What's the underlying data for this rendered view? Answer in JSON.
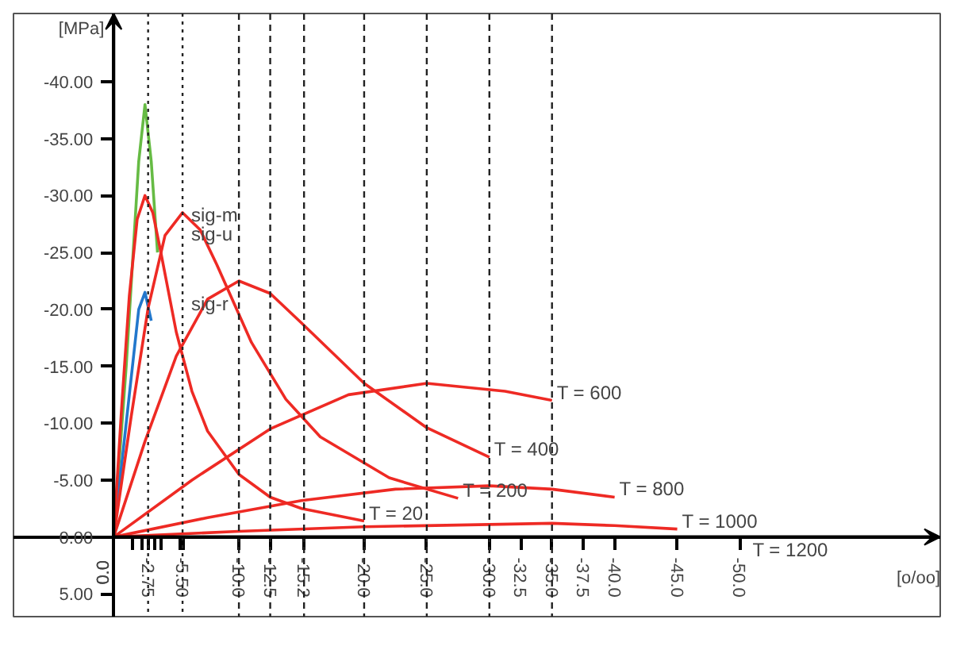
{
  "chart_data": {
    "type": "line",
    "xlabel": "[o/oo]",
    "ylabel": "[MPa]",
    "xlim": [
      8,
      -66
    ],
    "ylim": [
      7,
      -46
    ],
    "xticks": [
      {
        "value": 0,
        "label": "0.0"
      },
      {
        "value": -1.5,
        "label": null
      },
      {
        "value": -2.25,
        "label": null
      },
      {
        "value": -2.75,
        "label": "-2.75"
      },
      {
        "value": -3.25,
        "label": null
      },
      {
        "value": -3.75,
        "label": null
      },
      {
        "value": -5.25,
        "label": null
      },
      {
        "value": -5.5,
        "label": "-5.50"
      },
      {
        "value": -10,
        "label": "-10.0"
      },
      {
        "value": -12.5,
        "label": "-12.5"
      },
      {
        "value": -15.2,
        "label": "-15.2"
      },
      {
        "value": -20,
        "label": "-20.0"
      },
      {
        "value": -25,
        "label": "-25.0"
      },
      {
        "value": -30,
        "label": "-30.0"
      },
      {
        "value": -32.5,
        "label": "-32.5"
      },
      {
        "value": -35,
        "label": "-35.0"
      },
      {
        "value": -37.5,
        "label": "-37.5"
      },
      {
        "value": -40,
        "label": "-40.0"
      },
      {
        "value": -45,
        "label": "-45.0"
      },
      {
        "value": -50,
        "label": "-50.0"
      }
    ],
    "yticks": [
      {
        "value": -40,
        "label": "-40.00"
      },
      {
        "value": -35,
        "label": "-35.00"
      },
      {
        "value": -30,
        "label": "-30.00"
      },
      {
        "value": -25,
        "label": "-25.00"
      },
      {
        "value": -20,
        "label": "-20.00"
      },
      {
        "value": -15,
        "label": "-15.00"
      },
      {
        "value": -10,
        "label": "-10.00"
      },
      {
        "value": -5,
        "label": "-5.00"
      },
      {
        "value": 0,
        "label": "0.00"
      },
      {
        "value": 5,
        "label": "5.00"
      }
    ],
    "series": [
      {
        "color": "#66bb44",
        "x": [
          0,
          -1,
          -2,
          -2.5,
          -3,
          -3.5
        ],
        "values": [
          0,
          -15,
          -33,
          -38,
          -33,
          -25
        ]
      },
      {
        "color": "#2277cc",
        "x": [
          0,
          -1,
          -2,
          -2.5,
          -3
        ],
        "values": [
          0,
          -10,
          -20,
          -21.5,
          -19
        ]
      },
      {
        "name": "T = 20",
        "color": "#ee2a24",
        "x": [
          0,
          -0.625,
          -1.25,
          -1.875,
          -2.5,
          -3.125,
          -3.75,
          -5,
          -6.25,
          -7.5,
          -10,
          -12.5,
          -15,
          -20
        ],
        "values": [
          0,
          -11.2,
          -21.2,
          -27.9,
          -30,
          -28.5,
          -25.1,
          -18,
          -12.8,
          -9.3,
          -5.5,
          -3.5,
          -2.5,
          -1.4
        ]
      },
      {
        "name": "T = 200",
        "color": "#ee2a24",
        "x": [
          0,
          -1.4,
          -2.75,
          -4.1,
          -5.5,
          -6.9,
          -8.25,
          -11,
          -13.75,
          -16.5,
          -22,
          -27.5
        ],
        "values": [
          0,
          -10.6,
          -20.1,
          -26.5,
          -28.5,
          -27,
          -23.9,
          -17.1,
          -12.1,
          -8.8,
          -5.2,
          -3.4
        ]
      },
      {
        "name": "T = 400",
        "color": "#ee2a24",
        "x": [
          0,
          -2.5,
          -5,
          -7.5,
          -10,
          -12.5,
          -15,
          -20,
          -25,
          -30
        ],
        "values": [
          0,
          -8.4,
          -15.9,
          -20.9,
          -22.5,
          -21.4,
          -18.8,
          -13.5,
          -9.6,
          -7
        ]
      },
      {
        "name": "T = 600",
        "color": "#ee2a24",
        "x": [
          0,
          -6.25,
          -12.5,
          -18.75,
          -25,
          -31.25,
          -35
        ],
        "values": [
          0,
          -5,
          -9.5,
          -12.5,
          -13.5,
          -12.8,
          -12
        ]
      },
      {
        "name": "T = 800",
        "color": "#ee2a24",
        "x": [
          0,
          -7.5,
          -15,
          -22.5,
          -30,
          -35,
          -40
        ],
        "values": [
          0,
          -1.7,
          -3.2,
          -4.2,
          -4.5,
          -4.2,
          -3.5
        ]
      },
      {
        "name": "T = 1000",
        "color": "#ee2a24",
        "x": [
          0,
          -10,
          -20,
          -30,
          -35,
          -40,
          -45
        ],
        "values": [
          0,
          -0.5,
          -0.9,
          -1.1,
          -1.2,
          -1,
          -0.7
        ]
      }
    ],
    "ref_lines": [
      {
        "axis": "x",
        "value": -2.75,
        "line_style": "dotted"
      },
      {
        "axis": "x",
        "value": -5.5,
        "line_style": "dotted"
      },
      {
        "axis": "x",
        "value": -10,
        "line_style": "dashed"
      },
      {
        "axis": "x",
        "value": -12.5,
        "line_style": "dashed"
      },
      {
        "axis": "x",
        "value": -15.2,
        "line_style": "dashed"
      },
      {
        "axis": "x",
        "value": -20,
        "line_style": "dashed"
      },
      {
        "axis": "x",
        "value": -25,
        "line_style": "dashed"
      },
      {
        "axis": "x",
        "value": -30,
        "line_style": "dashed"
      },
      {
        "axis": "x",
        "value": -35,
        "line_style": "dashed"
      }
    ],
    "annotations": [
      "sig-m",
      "sig-u",
      "sig-r",
      "T = 1200"
    ]
  }
}
